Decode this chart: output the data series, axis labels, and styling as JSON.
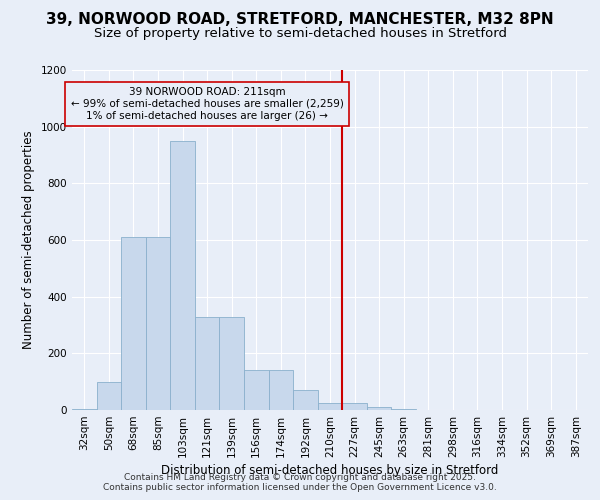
{
  "title_line1": "39, NORWOOD ROAD, STRETFORD, MANCHESTER, M32 8PN",
  "title_line2": "Size of property relative to semi-detached houses in Stretford",
  "xlabel": "Distribution of semi-detached houses by size in Stretford",
  "ylabel": "Number of semi-detached properties",
  "footer_line1": "Contains HM Land Registry data © Crown copyright and database right 2025.",
  "footer_line2": "Contains public sector information licensed under the Open Government Licence v3.0.",
  "annotation_line1": "39 NORWOOD ROAD: 211sqm",
  "annotation_line2": "← 99% of semi-detached houses are smaller (2,259)",
  "annotation_line3": "1% of semi-detached houses are larger (26) →",
  "bar_color": "#c8d8ec",
  "bar_edge_color": "#8ab0cc",
  "vline_color": "#cc0000",
  "vline_x_index": 10,
  "categories": [
    "32sqm",
    "50sqm",
    "68sqm",
    "85sqm",
    "103sqm",
    "121sqm",
    "139sqm",
    "156sqm",
    "174sqm",
    "192sqm",
    "210sqm",
    "227sqm",
    "245sqm",
    "263sqm",
    "281sqm",
    "298sqm",
    "316sqm",
    "334sqm",
    "352sqm",
    "369sqm",
    "387sqm"
  ],
  "values": [
    5,
    100,
    610,
    610,
    950,
    330,
    330,
    140,
    140,
    70,
    25,
    25,
    10,
    5,
    0,
    0,
    0,
    0,
    0,
    0,
    0
  ],
  "ylim": [
    0,
    1200
  ],
  "yticks": [
    0,
    200,
    400,
    600,
    800,
    1000,
    1200
  ],
  "background_color": "#e8eef8",
  "plot_bg_color": "#e8eef8",
  "grid_color": "#ffffff",
  "title_fontsize": 11,
  "subtitle_fontsize": 9.5,
  "axis_label_fontsize": 8.5,
  "tick_fontsize": 7.5,
  "annotation_fontsize": 7.5,
  "footer_fontsize": 6.5
}
